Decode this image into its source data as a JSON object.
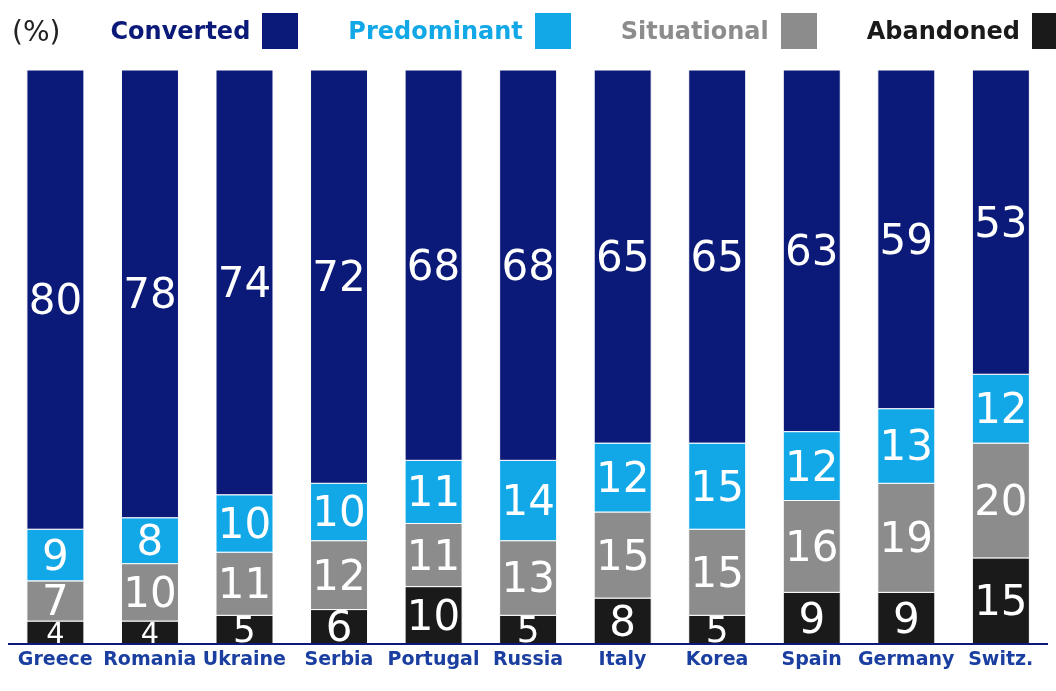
{
  "chart_data": {
    "type": "bar",
    "stacked": true,
    "ylabel": "(%)",
    "data_labels": true,
    "legend": "top",
    "grid": false,
    "categories": [
      "Greece",
      "Romania",
      "Ukraine",
      "Serbia",
      "Portugal",
      "Russia",
      "Italy",
      "Korea",
      "Spain",
      "Germany",
      "Switz."
    ],
    "series": [
      {
        "name": "Abandoned",
        "color": "#1a1a1a",
        "values": [
          4,
          4,
          5,
          6,
          10,
          5,
          8,
          5,
          9,
          9,
          15
        ]
      },
      {
        "name": "Situational",
        "color": "#8c8c8c",
        "values": [
          7,
          10,
          11,
          12,
          11,
          13,
          15,
          15,
          16,
          19,
          20
        ]
      },
      {
        "name": "Predominant",
        "color": "#12a8e8",
        "values": [
          9,
          8,
          10,
          10,
          11,
          14,
          12,
          15,
          12,
          13,
          12
        ]
      },
      {
        "name": "Converted",
        "color": "#0b1a78",
        "values": [
          80,
          78,
          74,
          72,
          68,
          68,
          65,
          65,
          63,
          59,
          53
        ]
      }
    ]
  }
}
